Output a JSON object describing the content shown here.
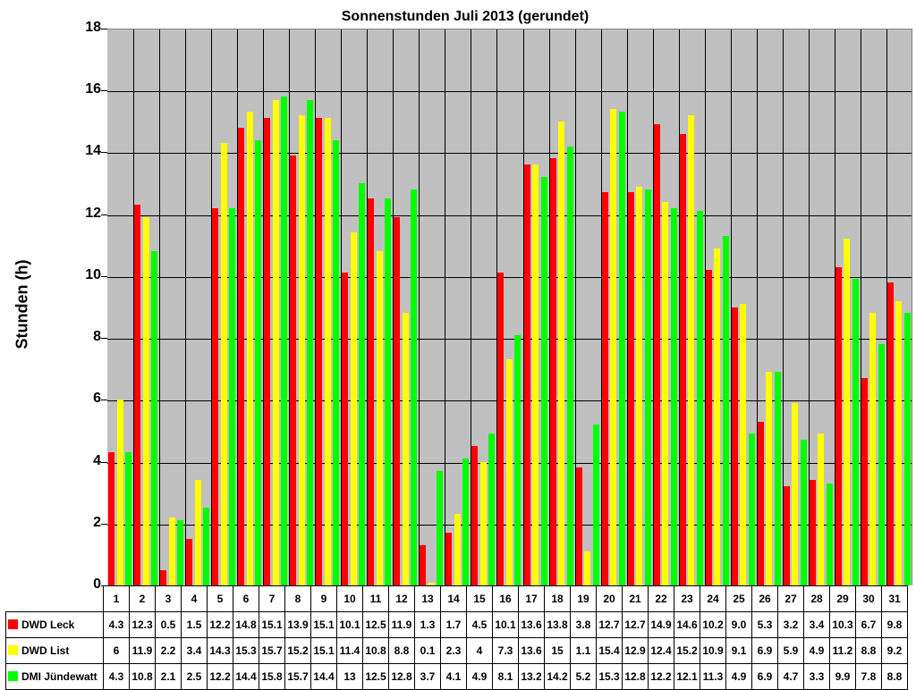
{
  "chart_data": {
    "type": "bar",
    "title": "Sonnenstunden Juli 2013 (gerundet)",
    "xlabel": "",
    "ylabel": "Stunden (h)",
    "ylim": [
      0,
      18
    ],
    "yticks": [
      0,
      2,
      4,
      6,
      8,
      10,
      12,
      14,
      16,
      18
    ],
    "grid": true,
    "legend_position": "data-table",
    "categories": [
      "1",
      "2",
      "3",
      "4",
      "5",
      "6",
      "7",
      "8",
      "9",
      "10",
      "11",
      "12",
      "13",
      "14",
      "15",
      "16",
      "17",
      "18",
      "19",
      "20",
      "21",
      "22",
      "23",
      "24",
      "25",
      "26",
      "27",
      "28",
      "29",
      "30",
      "31"
    ],
    "series": [
      {
        "name": "DWD Leck",
        "color": "#ff0000",
        "values": [
          4.3,
          12.3,
          0.5,
          1.5,
          12.2,
          14.8,
          15.1,
          13.9,
          15.1,
          10.1,
          12.5,
          11.9,
          1.3,
          1.7,
          4.5,
          10.1,
          13.6,
          13.8,
          3.8,
          12.7,
          12.7,
          14.9,
          14.6,
          10.2,
          9.0,
          5.3,
          3.2,
          3.4,
          10.3,
          6.7,
          9.8
        ]
      },
      {
        "name": "DWD List",
        "color": "#ffff00",
        "values": [
          6,
          11.9,
          2.2,
          3.4,
          14.3,
          15.3,
          15.7,
          15.2,
          15.1,
          11.4,
          10.8,
          8.8,
          0.1,
          2.3,
          4,
          7.3,
          13.6,
          15,
          1.1,
          15.4,
          12.9,
          12.4,
          15.2,
          10.9,
          9.1,
          6.9,
          5.9,
          4.9,
          11.2,
          8.8,
          9.2
        ]
      },
      {
        "name": "DMI Jündewatt",
        "color": "#00ff00",
        "values": [
          4.3,
          10.8,
          2.1,
          2.5,
          12.2,
          14.4,
          15.8,
          15.7,
          14.4,
          13,
          12.5,
          12.8,
          3.7,
          4.1,
          4.9,
          8.1,
          13.2,
          14.2,
          5.2,
          15.3,
          12.8,
          12.2,
          12.1,
          11.3,
          4.9,
          6.9,
          4.7,
          3.3,
          9.9,
          7.8,
          8.8
        ]
      }
    ],
    "table_display": {
      "DWD Leck": [
        "4.3",
        "12.3",
        "0.5",
        "1.5",
        "12.2",
        "14.8",
        "15.1",
        "13.9",
        "15.1",
        "10.1",
        "12.5",
        "11.9",
        "1.3",
        "1.7",
        "4.5",
        "10.1",
        "13.6",
        "13.8",
        "3.8",
        "12.7",
        "12.7",
        "14.9",
        "14.6",
        "10.2",
        "9.0",
        "5.3",
        "3.2",
        "3.4",
        "10.3",
        "6.7",
        "9.8"
      ],
      "DWD List": [
        "6",
        "11.9",
        "2.2",
        "3.4",
        "14.3",
        "15.3",
        "15.7",
        "15.2",
        "15.1",
        "11.4",
        "10.8",
        "8.8",
        "0.1",
        "2.3",
        "4",
        "7.3",
        "13.6",
        "15",
        "1.1",
        "15.4",
        "12.9",
        "12.4",
        "15.2",
        "10.9",
        "9.1",
        "6.9",
        "5.9",
        "4.9",
        "11.2",
        "8.8",
        "9.2"
      ],
      "DMI Jündewatt": [
        "4.3",
        "10.8",
        "2.1",
        "2.5",
        "12.2",
        "14.4",
        "15.8",
        "15.7",
        "14.4",
        "13",
        "12.5",
        "12.8",
        "3.7",
        "4.1",
        "4.9",
        "8.1",
        "13.2",
        "14.2",
        "5.2",
        "15.3",
        "12.8",
        "12.2",
        "12.1",
        "11.3",
        "4.9",
        "6.9",
        "4.7",
        "3.3",
        "9.9",
        "7.8",
        "8.8"
      ]
    }
  }
}
